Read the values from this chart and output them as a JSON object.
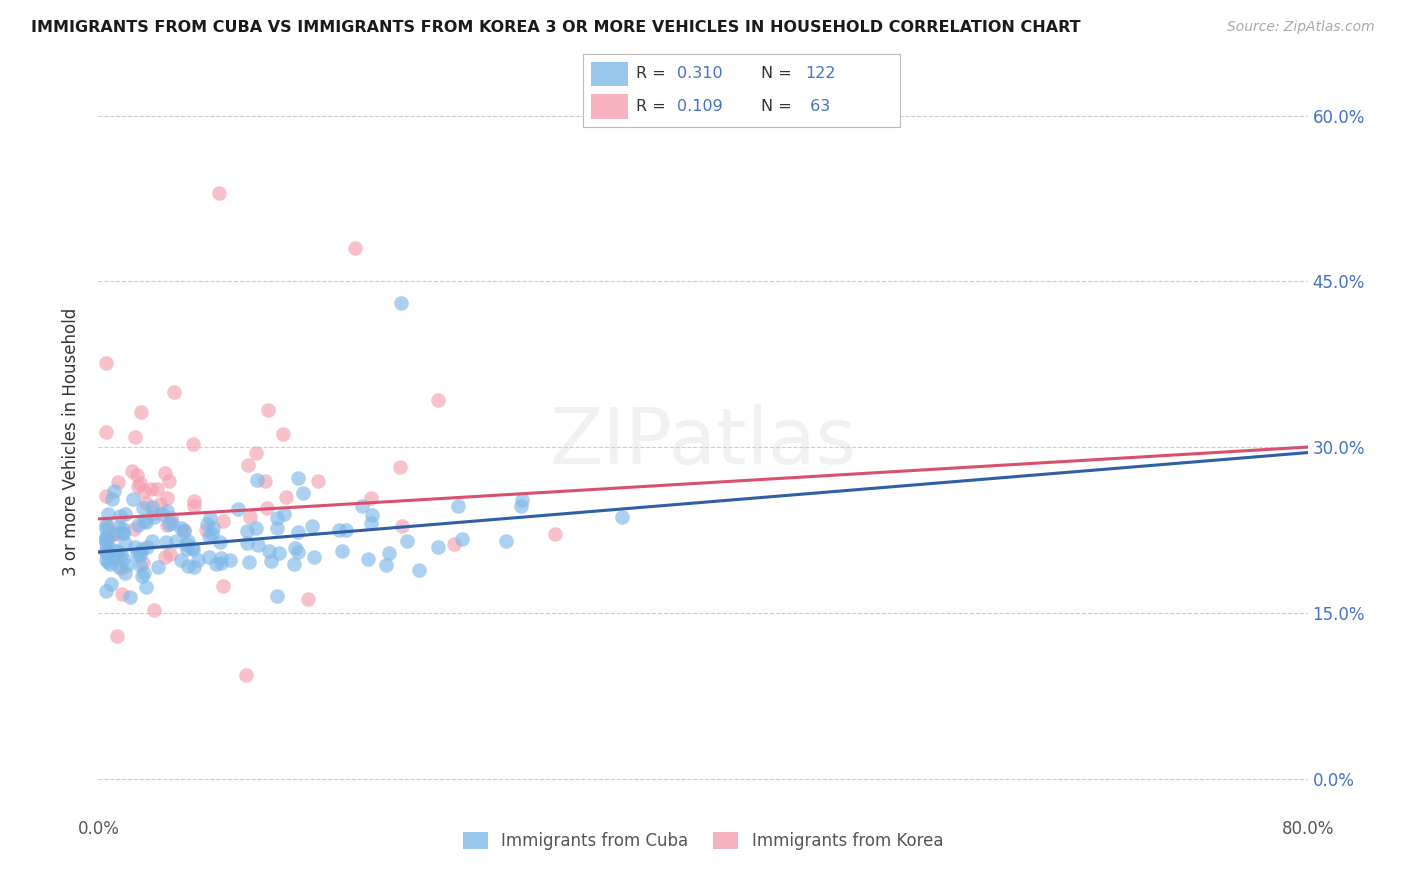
{
  "title": "IMMIGRANTS FROM CUBA VS IMMIGRANTS FROM KOREA 3 OR MORE VEHICLES IN HOUSEHOLD CORRELATION CHART",
  "source": "Source: ZipAtlas.com",
  "ylabel": "3 or more Vehicles in Household",
  "xlim": [
    0.0,
    80.0
  ],
  "ylim": [
    -3.0,
    64.0
  ],
  "yticks": [
    0.0,
    15.0,
    30.0,
    45.0,
    60.0
  ],
  "ytick_labels_right": [
    "0.0%",
    "15.0%",
    "30.0%",
    "45.0%",
    "60.0%"
  ],
  "cuba_color": "#7eb8e8",
  "korea_color": "#f4a0b0",
  "cuba_R": 0.31,
  "cuba_N": 122,
  "korea_R": 0.109,
  "korea_N": 63,
  "cuba_line_color": "#2f5fa5",
  "korea_line_color": "#d94f6e",
  "watermark": "ZIPatlas",
  "title_fontsize": 11.5,
  "source_fontsize": 10,
  "axis_label_fontsize": 12,
  "tick_fontsize": 12,
  "background_color": "#ffffff",
  "grid_color": "#cccccc",
  "right_tick_color": "#4472c4",
  "cuba_line_y0": 20.5,
  "cuba_line_y80": 29.5,
  "korea_line_y0": 23.5,
  "korea_line_y80": 30.0
}
